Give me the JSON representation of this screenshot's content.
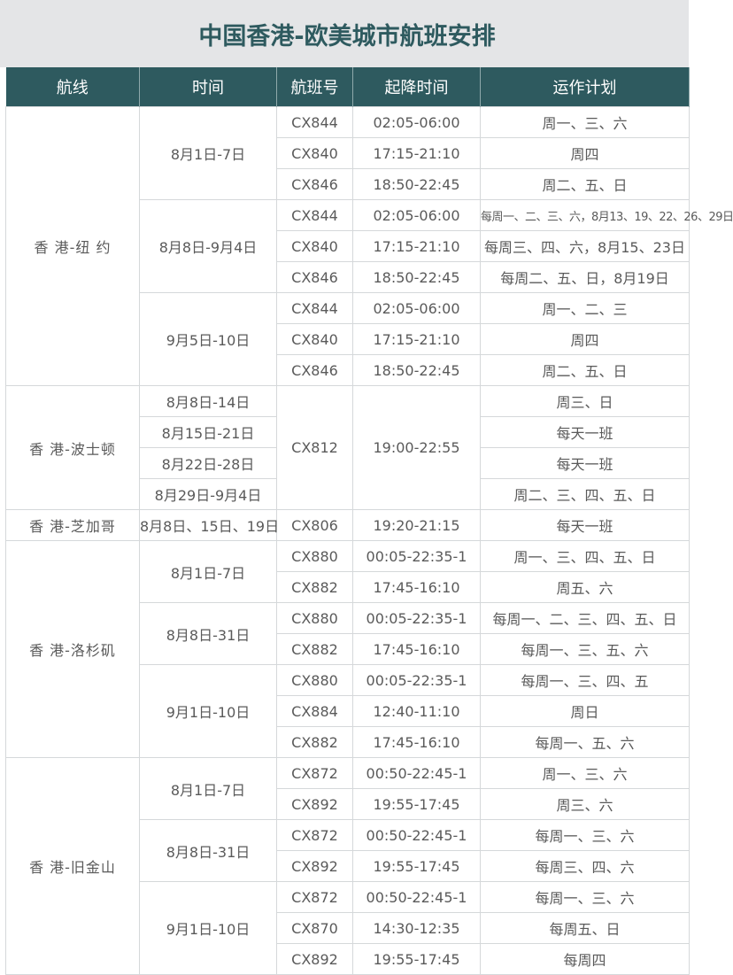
{
  "title": "中国香港-欧美城市航班安排",
  "headers": [
    "航线",
    "时间",
    "航班号",
    "起降时间",
    "运作计划"
  ],
  "colors": {
    "header_bg": "#2e5a5f",
    "title_bg": "#e4e5e7",
    "title_text": "#2e5a5f"
  },
  "routes": [
    {
      "route": "香 港-纽 约",
      "periods": [
        {
          "period": "8月1日-7日",
          "flights": [
            [
              "CX844",
              "02:05-06:00",
              "周一、三、六"
            ],
            [
              "CX840",
              "17:15-21:10",
              "周四"
            ],
            [
              "CX846",
              "18:50-22:45",
              "周二、五、日"
            ]
          ]
        },
        {
          "period": "8月8日-9月4日",
          "flights": [
            [
              "CX844",
              "02:05-06:00",
              "每周一、二、三、六，8月13、19、22、26、29日"
            ],
            [
              "CX840",
              "17:15-21:10",
              "每周三、四、六，8月15、23日"
            ],
            [
              "CX846",
              "18:50-22:45",
              "每周二、五、日，8月19日"
            ]
          ]
        },
        {
          "period": "9月5日-10日",
          "flights": [
            [
              "CX844",
              "02:05-06:00",
              "周一、二、三"
            ],
            [
              "CX840",
              "17:15-21:10",
              "周四"
            ],
            [
              "CX846",
              "18:50-22:45",
              "周二、五、日"
            ]
          ]
        }
      ]
    },
    {
      "route": "香 港-波士顿",
      "shared": {
        "flight": "CX812",
        "time": "19:00-22:55"
      },
      "periods": [
        {
          "period": "8月8日-14日",
          "plan": "周三、日"
        },
        {
          "period": "8月15日-21日",
          "plan": "每天一班"
        },
        {
          "period": "8月22日-28日",
          "plan": "每天一班"
        },
        {
          "period": "8月29日-9月4日",
          "plan": "周二、三、四、五、日"
        }
      ]
    },
    {
      "route": "香 港-芝加哥",
      "periods": [
        {
          "period": "8月8日、15日、19日",
          "flights": [
            [
              "CX806",
              "19:20-21:15",
              "每天一班"
            ]
          ]
        }
      ]
    },
    {
      "route": "香 港-洛杉矶",
      "periods": [
        {
          "period": "8月1日-7日",
          "flights": [
            [
              "CX880",
              "00:05-22:35-1",
              "周一、三、四、五、日"
            ],
            [
              "CX882",
              "17:45-16:10",
              "周五、六"
            ]
          ]
        },
        {
          "period": "8月8日-31日",
          "flights": [
            [
              "CX880",
              "00:05-22:35-1",
              "每周一、二、三、四、五、日"
            ],
            [
              "CX882",
              "17:45-16:10",
              "每周一、三、五、六"
            ]
          ]
        },
        {
          "period": "9月1日-10日",
          "flights": [
            [
              "CX880",
              "00:05-22:35-1",
              "每周一、三、四、五"
            ],
            [
              "CX884",
              "12:40-11:10",
              "周日"
            ],
            [
              "CX882",
              "17:45-16:10",
              "每周一、五、六"
            ]
          ]
        }
      ]
    },
    {
      "route": "香 港-旧金山",
      "periods": [
        {
          "period": "8月1日-7日",
          "flights": [
            [
              "CX872",
              "00:50-22:45-1",
              "周一、三、六"
            ],
            [
              "CX892",
              "19:55-17:45",
              "周三、六"
            ]
          ]
        },
        {
          "period": "8月8日-31日",
          "flights": [
            [
              "CX872",
              "00:50-22:45-1",
              "每周一、三、六"
            ],
            [
              "CX892",
              "19:55-17:45",
              "每周三、四、六"
            ]
          ]
        },
        {
          "period": "9月1日-10日",
          "flights": [
            [
              "CX872",
              "00:50-22:45-1",
              "每周一、三、六"
            ],
            [
              "CX870",
              "14:30-12:35",
              "每周五、日"
            ],
            [
              "CX892",
              "19:55-17:45",
              "每周四"
            ]
          ]
        }
      ]
    }
  ]
}
